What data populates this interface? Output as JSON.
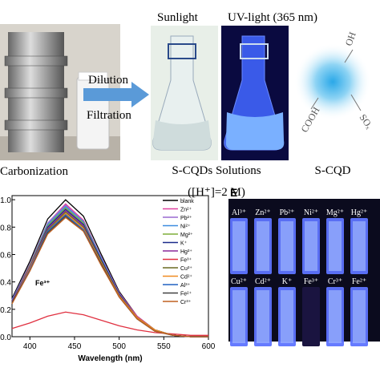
{
  "top": {
    "sunlight": "Sunlight",
    "uv": "UV-light (365 nm)",
    "dilution": "Dilution",
    "filtration": "Filtration",
    "carbonization": "Carbonization",
    "solutions": "S-CQDs Solutions",
    "concentration": "([H⁺]=2 M)",
    "scqd": "S-CQD",
    "groups": [
      "OH",
      "SOₓ",
      "COOH"
    ]
  },
  "chart_data": {
    "type": "line",
    "xlabel": "Wavelength (nm)",
    "annotation": "Fe³⁺",
    "x": [
      380,
      400,
      420,
      440,
      460,
      480,
      500,
      520,
      540,
      560,
      580,
      600
    ],
    "xlim": [
      380,
      600
    ],
    "xticks": [
      400,
      450,
      500,
      550,
      600
    ],
    "ylim": [
      0,
      1.03
    ],
    "yticks": [
      {
        "value": 0,
        "label": "0.0"
      },
      {
        "value": 0.2,
        "label": "0.2"
      },
      {
        "value": 0.4,
        "label": "0.4"
      },
      {
        "value": 0.6,
        "label": "0.6"
      },
      {
        "value": 0.8,
        "label": "0.8"
      },
      {
        "value": 1,
        "label": "1.0"
      }
    ],
    "series": [
      {
        "name": "blank",
        "color": "#000000",
        "values": [
          0.28,
          0.55,
          0.86,
          1.0,
          0.88,
          0.6,
          0.33,
          0.15,
          0.05,
          0.01,
          0,
          0
        ]
      },
      {
        "name": "Zn²⁺",
        "color": "#e040a0",
        "values": [
          0.27,
          0.53,
          0.83,
          0.97,
          0.85,
          0.58,
          0.32,
          0.15,
          0.05,
          0.01,
          0,
          0
        ]
      },
      {
        "name": "Pb²⁺",
        "color": "#9a6ad0",
        "values": [
          0.27,
          0.53,
          0.83,
          0.96,
          0.84,
          0.58,
          0.32,
          0.14,
          0.05,
          0.01,
          0,
          0
        ]
      },
      {
        "name": "Ni²⁺",
        "color": "#3c8ce0",
        "values": [
          0.27,
          0.52,
          0.82,
          0.95,
          0.84,
          0.57,
          0.31,
          0.14,
          0.05,
          0.01,
          0,
          0
        ]
      },
      {
        "name": "Mg²⁺",
        "color": "#7fae3a",
        "values": [
          0.26,
          0.52,
          0.81,
          0.94,
          0.83,
          0.56,
          0.31,
          0.14,
          0.05,
          0.01,
          0,
          0
        ]
      },
      {
        "name": "K⁺",
        "color": "#1a2a8a",
        "values": [
          0.26,
          0.51,
          0.8,
          0.93,
          0.82,
          0.56,
          0.31,
          0.14,
          0.05,
          0.01,
          0,
          0
        ]
      },
      {
        "name": "Hg²⁺",
        "color": "#8a2a9a",
        "values": [
          0.26,
          0.51,
          0.79,
          0.92,
          0.81,
          0.55,
          0.3,
          0.14,
          0.05,
          0.01,
          0,
          0
        ]
      },
      {
        "name": "Fe³⁺",
        "color": "#e03040",
        "values": [
          0.06,
          0.1,
          0.15,
          0.18,
          0.16,
          0.12,
          0.08,
          0.05,
          0.03,
          0.02,
          0.01,
          0.01
        ]
      },
      {
        "name": "Cu²⁺",
        "color": "#6a6a20",
        "values": [
          0.25,
          0.5,
          0.78,
          0.91,
          0.8,
          0.55,
          0.3,
          0.14,
          0.05,
          0.01,
          0,
          0
        ]
      },
      {
        "name": "Cd²⁺",
        "color": "#f08a20",
        "values": [
          0.25,
          0.5,
          0.77,
          0.9,
          0.79,
          0.54,
          0.3,
          0.14,
          0.05,
          0.01,
          0,
          0
        ]
      },
      {
        "name": "Al³⁺",
        "color": "#2060c0",
        "values": [
          0.25,
          0.49,
          0.77,
          0.89,
          0.78,
          0.53,
          0.29,
          0.13,
          0.04,
          0.01,
          0,
          0
        ]
      },
      {
        "name": "Fe²⁺",
        "color": "#404040",
        "values": [
          0.25,
          0.48,
          0.76,
          0.88,
          0.77,
          0.53,
          0.29,
          0.13,
          0.04,
          0.01,
          0,
          0
        ]
      },
      {
        "name": "Cr³⁺",
        "color": "#c06020",
        "values": [
          0.24,
          0.48,
          0.75,
          0.87,
          0.77,
          0.52,
          0.29,
          0.13,
          0.04,
          0.01,
          0,
          0
        ]
      }
    ]
  },
  "cuvettes": {
    "label": "E",
    "row1": [
      "Al³⁺",
      "Zn²⁺",
      "Pb²⁺",
      "Ni²⁺",
      "Mg²⁺",
      "Hg²⁺"
    ],
    "row2": [
      "Cu²⁺",
      "Cd²⁺",
      "K⁺",
      "Fe³⁺",
      "Cr³⁺",
      "Fe²⁺"
    ]
  }
}
